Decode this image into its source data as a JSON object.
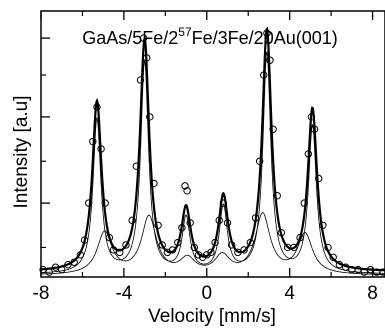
{
  "chart_data": {
    "type": "scatter",
    "title": {
      "base": "GaAs/5Fe/2",
      "sup": "57",
      "rest": "Fe/3Fe/20Au(001)"
    },
    "xlabel": "Velocity [mm/s]",
    "ylabel": "Intensity [a.u]",
    "xlim": [
      -8,
      8.6
    ],
    "ylim": [
      0,
      1.08
    ],
    "x_ticks": [
      "-8",
      "-4",
      "0",
      "4",
      "8"
    ],
    "x_tick_values": [
      -8,
      -4,
      0,
      4,
      8
    ],
    "grid": false,
    "fit_peaks": [
      {
        "center": -5.3,
        "height": 0.68
      },
      {
        "center": -3.0,
        "height": 0.93
      },
      {
        "center": -1.0,
        "height": 0.24
      },
      {
        "center": 0.8,
        "height": 0.29
      },
      {
        "center": 2.9,
        "height": 0.97
      },
      {
        "center": 5.1,
        "height": 0.65
      }
    ],
    "fit_baseline": 0.02,
    "fit_hwhm": 0.27,
    "data_points": [
      [
        -7.9,
        0.03
      ],
      [
        -7.6,
        0.02
      ],
      [
        -7.3,
        0.04
      ],
      [
        -7.0,
        0.03
      ],
      [
        -6.7,
        0.05
      ],
      [
        -6.4,
        0.06
      ],
      [
        -6.1,
        0.09
      ],
      [
        -5.9,
        0.15
      ],
      [
        -5.7,
        0.3
      ],
      [
        -5.5,
        0.55
      ],
      [
        -5.3,
        0.69
      ],
      [
        -5.1,
        0.52
      ],
      [
        -4.9,
        0.3
      ],
      [
        -4.7,
        0.16
      ],
      [
        -4.5,
        0.11
      ],
      [
        -4.2,
        0.1
      ],
      [
        -3.9,
        0.13
      ],
      [
        -3.6,
        0.23
      ],
      [
        -3.4,
        0.45
      ],
      [
        -3.2,
        0.8
      ],
      [
        -3.05,
        0.97
      ],
      [
        -2.9,
        0.89
      ],
      [
        -2.75,
        0.65
      ],
      [
        -2.55,
        0.38
      ],
      [
        -2.35,
        0.21
      ],
      [
        -2.15,
        0.13
      ],
      [
        -1.9,
        0.1
      ],
      [
        -1.65,
        0.11
      ],
      [
        -1.4,
        0.14
      ],
      [
        -1.2,
        0.2
      ],
      [
        -1.05,
        0.37
      ],
      [
        -0.95,
        0.35
      ],
      [
        -0.8,
        0.22
      ],
      [
        -0.6,
        0.12
      ],
      [
        -0.4,
        0.09
      ],
      [
        -0.2,
        0.08
      ],
      [
        0.0,
        0.09
      ],
      [
        0.2,
        0.1
      ],
      [
        0.4,
        0.14
      ],
      [
        0.6,
        0.23
      ],
      [
        0.8,
        0.3
      ],
      [
        1.0,
        0.22
      ],
      [
        1.2,
        0.13
      ],
      [
        1.5,
        0.1
      ],
      [
        1.8,
        0.11
      ],
      [
        2.1,
        0.14
      ],
      [
        2.35,
        0.24
      ],
      [
        2.55,
        0.47
      ],
      [
        2.75,
        0.82
      ],
      [
        2.9,
        0.99
      ],
      [
        3.05,
        0.88
      ],
      [
        3.2,
        0.6
      ],
      [
        3.4,
        0.33
      ],
      [
        3.6,
        0.18
      ],
      [
        3.9,
        0.12
      ],
      [
        4.2,
        0.12
      ],
      [
        4.5,
        0.16
      ],
      [
        4.7,
        0.3
      ],
      [
        4.9,
        0.5
      ],
      [
        5.05,
        0.65
      ],
      [
        5.2,
        0.6
      ],
      [
        5.4,
        0.4
      ],
      [
        5.6,
        0.21
      ],
      [
        5.85,
        0.12
      ],
      [
        6.1,
        0.08
      ],
      [
        6.4,
        0.05
      ],
      [
        6.7,
        0.04
      ],
      [
        7.0,
        0.03
      ],
      [
        7.3,
        0.03
      ],
      [
        7.6,
        0.02
      ],
      [
        7.9,
        0.03
      ],
      [
        8.2,
        0.02
      ],
      [
        8.5,
        0.02
      ]
    ]
  }
}
